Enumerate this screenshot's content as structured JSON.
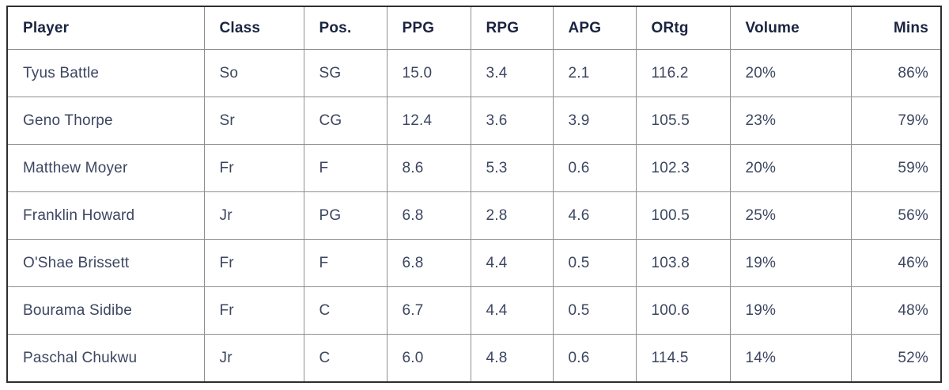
{
  "chart_data": {
    "type": "table",
    "title": "",
    "columns": [
      "Player",
      "Class",
      "Pos.",
      "PPG",
      "RPG",
      "APG",
      "ORtg",
      "Volume",
      "Mins"
    ],
    "rows": [
      [
        "Tyus Battle",
        "So",
        "SG",
        "15.0",
        "3.4",
        "2.1",
        "116.2",
        "20%",
        "86%"
      ],
      [
        "Geno Thorpe",
        "Sr",
        "CG",
        "12.4",
        "3.6",
        "3.9",
        "105.5",
        "23%",
        "79%"
      ],
      [
        "Matthew Moyer",
        "Fr",
        "F",
        "8.6",
        "5.3",
        "0.6",
        "102.3",
        "20%",
        "59%"
      ],
      [
        "Franklin Howard",
        "Jr",
        "PG",
        "6.8",
        "2.8",
        "4.6",
        "100.5",
        "25%",
        "56%"
      ],
      [
        "O'Shae Brissett",
        "Fr",
        "F",
        "6.8",
        "4.4",
        "0.5",
        "103.8",
        "19%",
        "46%"
      ],
      [
        "Bourama Sidibe",
        "Fr",
        "C",
        "6.7",
        "4.4",
        "0.5",
        "100.6",
        "19%",
        "48%"
      ],
      [
        "Paschal Chukwu",
        "Jr",
        "C",
        "6.0",
        "4.8",
        "0.6",
        "114.5",
        "14%",
        "52%"
      ]
    ],
    "layout": {
      "grid": true,
      "header_row": true,
      "last_column_align": "right"
    }
  },
  "colors": {
    "header_text": "#1b2440",
    "body_text": "#3c4660",
    "outer_border": "#2e2e2e",
    "grid_line": "#8f8f8f",
    "background": "#ffffff"
  }
}
